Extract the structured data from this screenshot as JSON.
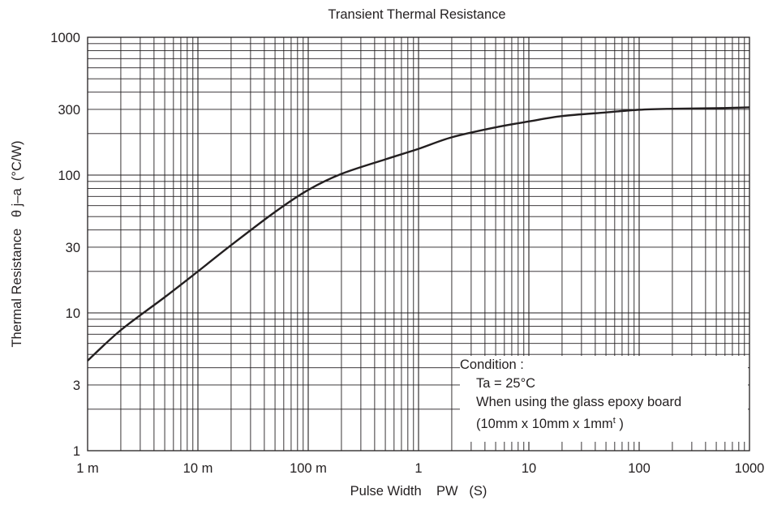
{
  "chart_data": {
    "type": "line",
    "title": "Transient Thermal Resistance",
    "xlabel": "Pulse Width    PW   (S)",
    "ylabel": "Thermal Resistance   θ j–a  (°C/W)",
    "xscale": "log",
    "yscale": "log",
    "xlim": [
      0.001,
      1000
    ],
    "ylim": [
      1,
      1000
    ],
    "grid": true,
    "x_ticks": [
      {
        "value": 0.001,
        "label": "1 m"
      },
      {
        "value": 0.01,
        "label": "10 m"
      },
      {
        "value": 0.1,
        "label": "100 m"
      },
      {
        "value": 1,
        "label": "1"
      },
      {
        "value": 10,
        "label": "10"
      },
      {
        "value": 100,
        "label": "100"
      },
      {
        "value": 1000,
        "label": "1000"
      }
    ],
    "y_ticks": [
      {
        "value": 1,
        "label": "1"
      },
      {
        "value": 3,
        "label": "3"
      },
      {
        "value": 10,
        "label": "10"
      },
      {
        "value": 30,
        "label": "30"
      },
      {
        "value": 100,
        "label": "100"
      },
      {
        "value": 300,
        "label": "300"
      },
      {
        "value": 1000,
        "label": "1000"
      }
    ],
    "series": [
      {
        "x": [
          0.001,
          0.002,
          0.005,
          0.01,
          0.02,
          0.05,
          0.1,
          0.2,
          0.5,
          1,
          2,
          5,
          10,
          20,
          50,
          100,
          200,
          500,
          1000
        ],
        "y": [
          4.5,
          7.5,
          13,
          20,
          31,
          54,
          78,
          102,
          130,
          155,
          188,
          222,
          245,
          268,
          285,
          298,
          303,
          306,
          310
        ]
      }
    ],
    "annotation": {
      "title": "Condition :",
      "lines": [
        "Ta = 25°C",
        "When using the glass epoxy board",
        "(10mm x 10mm x 1mm"
      ],
      "superscript": "t",
      "suffix": " )"
    }
  }
}
